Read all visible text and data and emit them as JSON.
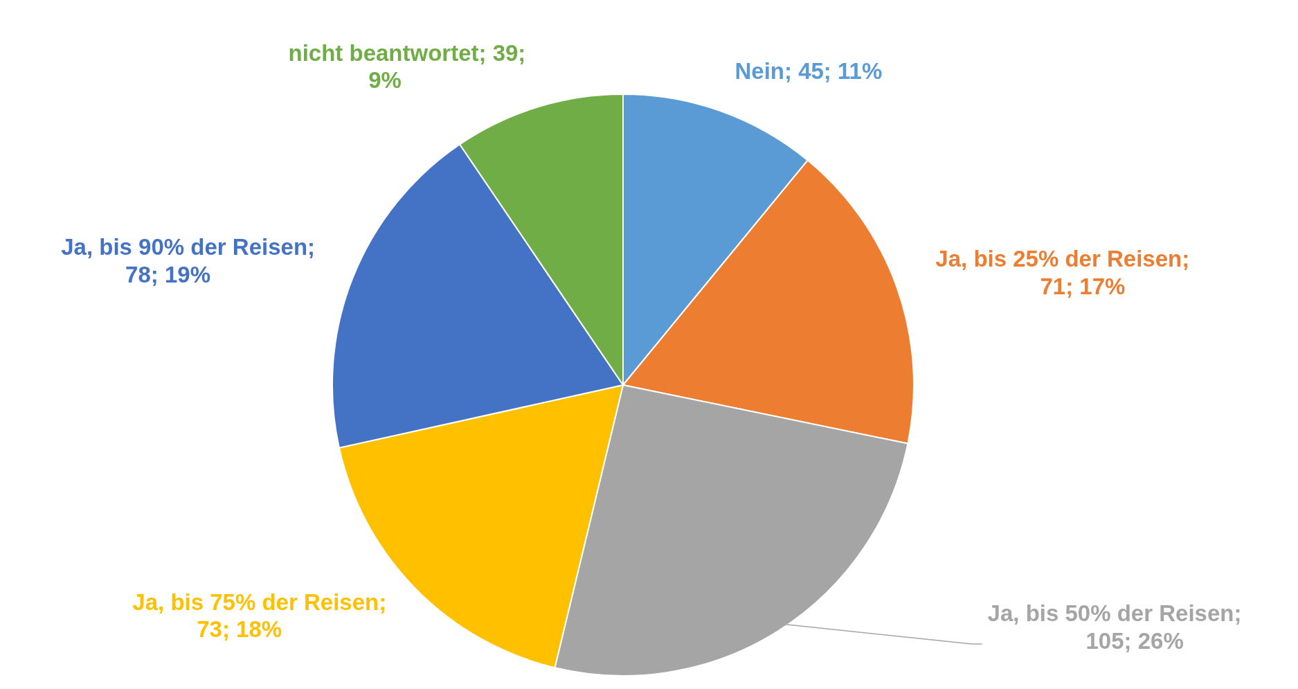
{
  "chart_data": {
    "type": "pie",
    "categories": [
      "Nein",
      "Ja, bis 25% der Reisen",
      "Ja, bis 50% der Reisen",
      "Ja, bis 75% der Reisen",
      "Ja, bis 90% der Reisen",
      "nicht beantwortet"
    ],
    "values": [
      45,
      71,
      105,
      73,
      78,
      39
    ],
    "value_labels": [
      "; 45; 11%",
      "; 71; 17%",
      "; 105; 26%",
      "; 73; 18%",
      "; 78; 19%",
      "; 39; 9%"
    ],
    "colors": [
      "#5b9bd5",
      "#ed7d31",
      "#a5a5a5",
      "#ffc000",
      "#4472c4",
      "#70ad47"
    ]
  }
}
